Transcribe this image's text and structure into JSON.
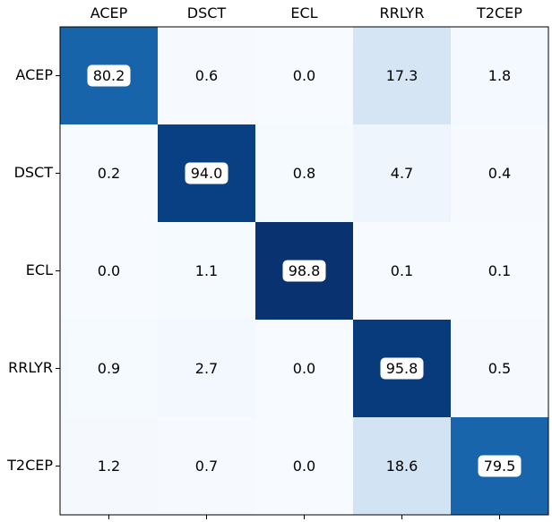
{
  "chart_data": {
    "type": "heatmap",
    "title": "",
    "xlabel": "",
    "ylabel": "",
    "x_categories": [
      "ACEP",
      "DSCT",
      "ECL",
      "RRLYR",
      "T2CEP"
    ],
    "y_categories": [
      "ACEP",
      "DSCT",
      "ECL",
      "RRLYR",
      "T2CEP"
    ],
    "x_tick_position": "top",
    "values": [
      [
        80.2,
        0.6,
        0.0,
        17.3,
        1.8
      ],
      [
        0.2,
        94.0,
        0.8,
        4.7,
        0.4
      ],
      [
        0.0,
        1.1,
        98.8,
        0.1,
        0.1
      ],
      [
        0.9,
        2.7,
        0.0,
        95.8,
        0.5
      ],
      [
        1.2,
        0.7,
        0.0,
        18.6,
        79.5
      ]
    ],
    "value_labels": [
      [
        "80.2",
        "0.6",
        "0.0",
        "17.3",
        "1.8"
      ],
      [
        "0.2",
        "94.0",
        "0.8",
        "4.7",
        "0.4"
      ],
      [
        "0.0",
        "1.1",
        "98.8",
        "0.1",
        "0.1"
      ],
      [
        "0.9",
        "2.7",
        "0.0",
        "95.8",
        "0.5"
      ],
      [
        "1.2",
        "0.7",
        "0.0",
        "18.6",
        "79.5"
      ]
    ],
    "colormap": "Blues",
    "color_range": [
      0,
      100
    ],
    "grid": false,
    "legend": "none",
    "label_box_for_dark_cells": true,
    "label_box_color": "#ffffff"
  }
}
